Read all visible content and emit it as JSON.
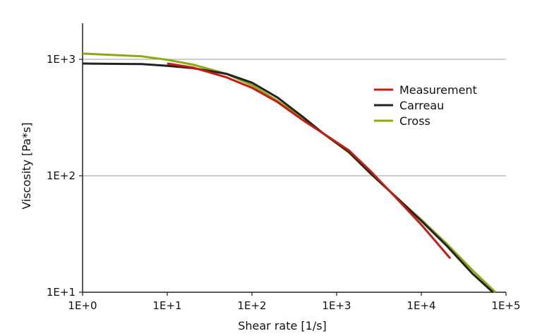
{
  "chart_data": {
    "type": "line",
    "title": "",
    "xlabel": "Shear rate [1/s]",
    "ylabel": "Viscosity [Pa*s]",
    "xscale": "log",
    "yscale": "log",
    "xlim": [
      1,
      100000
    ],
    "ylim": [
      10,
      1000
    ],
    "x_ticks": [
      "1E+0",
      "1E+1",
      "1E+2",
      "1E+3",
      "1E+4",
      "1E+5"
    ],
    "y_ticks": [
      "1E+1",
      "1E+2",
      "1E+3"
    ],
    "grid": "horizontal",
    "legend_position": "top-right",
    "series": [
      {
        "name": "Measurement",
        "color": "#cc1a12",
        "points": [
          [
            10,
            920
          ],
          [
            20,
            850
          ],
          [
            50,
            700
          ],
          [
            100,
            570
          ],
          [
            200,
            430
          ],
          [
            400,
            300
          ],
          [
            700,
            230
          ],
          [
            1400,
            165
          ],
          [
            2500,
            110
          ],
          [
            5000,
            65
          ],
          [
            10000,
            38
          ],
          [
            22000,
            19.5
          ]
        ]
      },
      {
        "name": "Carreau",
        "color": "#222222",
        "points": [
          [
            1,
            920
          ],
          [
            2,
            915
          ],
          [
            5,
            910
          ],
          [
            10,
            880
          ],
          [
            20,
            840
          ],
          [
            50,
            750
          ],
          [
            100,
            630
          ],
          [
            200,
            470
          ],
          [
            400,
            320
          ],
          [
            700,
            230
          ],
          [
            1400,
            160
          ],
          [
            2500,
            105
          ],
          [
            5000,
            66
          ],
          [
            10000,
            41
          ],
          [
            20000,
            25
          ],
          [
            40000,
            14.5
          ],
          [
            70000,
            10
          ]
        ]
      },
      {
        "name": "Cross",
        "color": "#8aaa0f",
        "points": [
          [
            1,
            1120
          ],
          [
            5,
            1060
          ],
          [
            10,
            990
          ],
          [
            20,
            900
          ],
          [
            50,
            750
          ],
          [
            100,
            600
          ],
          [
            200,
            440
          ],
          [
            400,
            310
          ],
          [
            700,
            230
          ],
          [
            1400,
            158
          ],
          [
            2500,
            105
          ],
          [
            5000,
            66
          ],
          [
            10000,
            42
          ],
          [
            20000,
            26
          ],
          [
            40000,
            15.5
          ],
          [
            75000,
            10
          ]
        ]
      }
    ]
  }
}
